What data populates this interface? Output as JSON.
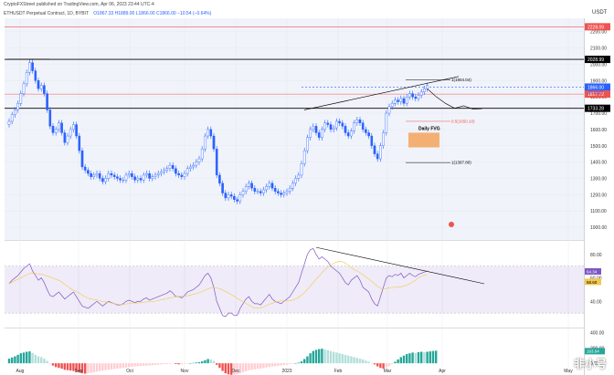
{
  "header": {
    "published": "CryptoFXStreet published on TradingView.com, Apr 06, 2023 23:44 UTC-4",
    "symbol_line": "ETHUSDT Perpetual Contract, 1D, BYBIT",
    "ohlc": "O1867.33 H1889.00 L1866.00 C1866.00 −10.54 (−0.64%)"
  },
  "currency": "USDT",
  "watermark": "非小号",
  "colors": {
    "up": "#2962ff",
    "down": "#2962ff",
    "rsi_band": "#7e57c2",
    "macd_up": "#26a69a",
    "macd_down": "#ef5350",
    "resistance": "#ef5350",
    "support": "#000000"
  },
  "chart_data": [
    {
      "type": "candlestick",
      "panel": "price",
      "x_ticks": [
        "Aug",
        "Sep",
        "Oct",
        "Nov",
        "Dec",
        "2023",
        "Feb",
        "Mar",
        "Apr",
        "May"
      ],
      "y_ticks": [
        "2200.00",
        "2100.00",
        "2000.00",
        "1900.00",
        "1800.00",
        "1700.00",
        "1600.00",
        "1500.00",
        "1400.00",
        "1300.00",
        "1200.00",
        "1100.00",
        "1000.00"
      ],
      "ylim": [
        950,
        2260
      ],
      "close_series": [
        1650,
        1690,
        1720,
        1760,
        1820,
        1880,
        1950,
        2010,
        1960,
        1900,
        1850,
        1870,
        1820,
        1720,
        1620,
        1580,
        1600,
        1640,
        1580,
        1520,
        1560,
        1600,
        1630,
        1560,
        1470,
        1370,
        1350,
        1330,
        1310,
        1320,
        1330,
        1300,
        1280,
        1300,
        1330,
        1320,
        1310,
        1300,
        1290,
        1290,
        1320,
        1330,
        1310,
        1290,
        1300,
        1290,
        1320,
        1330,
        1300,
        1310,
        1320,
        1330,
        1340,
        1350,
        1360,
        1380,
        1360,
        1330,
        1320,
        1310,
        1330,
        1360,
        1370,
        1380,
        1400,
        1420,
        1480,
        1560,
        1600,
        1560,
        1480,
        1320,
        1270,
        1210,
        1180,
        1200,
        1190,
        1170,
        1160,
        1200,
        1220,
        1250,
        1270,
        1240,
        1220,
        1220,
        1210,
        1230,
        1250,
        1270,
        1240,
        1220,
        1210,
        1200,
        1210,
        1220,
        1240,
        1270,
        1300,
        1320,
        1390,
        1470,
        1550,
        1600,
        1620,
        1580,
        1550,
        1600,
        1640,
        1630,
        1600,
        1610,
        1650,
        1640,
        1620,
        1580,
        1560,
        1590,
        1640,
        1660,
        1640,
        1600,
        1580,
        1560,
        1500,
        1450,
        1420,
        1500,
        1580,
        1700,
        1740,
        1760,
        1780,
        1770,
        1790,
        1760,
        1800,
        1820,
        1800,
        1790,
        1810,
        1830,
        1850,
        1870
      ],
      "projection": [
        1850,
        1800,
        1760,
        1730,
        1745,
        1725,
        1728
      ],
      "levels": [
        {
          "value": 2230,
          "label": "2228.09",
          "color": "#ef5350"
        },
        {
          "value": 2030,
          "label": "2028.99",
          "color": "#000000"
        },
        {
          "value": 1860,
          "label": "1866.00",
          "color": "#2962ff"
        },
        {
          "value": 1817,
          "label": "1817.72",
          "color": "#ef5350"
        },
        {
          "value": 1730,
          "label": "1733.28",
          "color": "#000000"
        }
      ],
      "countdown": "23:15:57",
      "annotations": [
        "1(1904.04)",
        "0.5(1650.10)",
        "1(1397.80)",
        "Daily FVG"
      ],
      "fvg_zone": [
        1490,
        1580
      ]
    },
    {
      "type": "line",
      "panel": "rsi",
      "y_ticks": [
        "80.00",
        "60.00",
        "40.00"
      ],
      "ylim": [
        20,
        90
      ],
      "band": [
        30,
        70
      ],
      "last_values": [
        "64.34",
        "58.60"
      ],
      "values": [
        55,
        58,
        60,
        62,
        65,
        68,
        70,
        72,
        66,
        62,
        58,
        60,
        56,
        50,
        45,
        44,
        46,
        48,
        45,
        42,
        44,
        46,
        48,
        44,
        40,
        36,
        35,
        34,
        36,
        38,
        40,
        38,
        36,
        38,
        40,
        39,
        38,
        37,
        37,
        38,
        40,
        41,
        40,
        39,
        40,
        40,
        42,
        43,
        41,
        42,
        43,
        44,
        45,
        46,
        47,
        49,
        47,
        44,
        44,
        43,
        45,
        48,
        49,
        50,
        52,
        54,
        58,
        62,
        64,
        60,
        52,
        40,
        34,
        28,
        27,
        30,
        30,
        28,
        28,
        34,
        38,
        42,
        44,
        40,
        38,
        38,
        37,
        40,
        43,
        46,
        42,
        40,
        39,
        38,
        40,
        42,
        44,
        48,
        52,
        56,
        64,
        72,
        80,
        84,
        85,
        80,
        76,
        78,
        76,
        74,
        70,
        68,
        66,
        64,
        60,
        56,
        54,
        58,
        60,
        62,
        58,
        52,
        50,
        48,
        42,
        38,
        36,
        44,
        52,
        60,
        62,
        61,
        63,
        62,
        64,
        60,
        62,
        64,
        62,
        61,
        63,
        64,
        65,
        66
      ]
    },
    {
      "type": "bar",
      "panel": "macd",
      "y_ticks": [
        "400.00",
        "200.00",
        "0.00"
      ],
      "ylim": [
        -260,
        430
      ],
      "last_value": "163.64",
      "values": [
        60,
        75,
        90,
        110,
        130,
        140,
        150,
        155,
        135,
        110,
        90,
        80,
        60,
        30,
        0,
        -30,
        -50,
        -60,
        -70,
        -85,
        -90,
        -95,
        -100,
        -110,
        -120,
        -130,
        -135,
        -130,
        -125,
        -118,
        -110,
        -100,
        -95,
        -90,
        -85,
        -80,
        -75,
        -70,
        -65,
        -60,
        -55,
        -50,
        -45,
        -40,
        -38,
        -35,
        -32,
        -30,
        -28,
        -25,
        -22,
        -18,
        -15,
        -12,
        -10,
        -8,
        -6,
        -10,
        -14,
        -12,
        -8,
        -4,
        0,
        5,
        10,
        15,
        25,
        40,
        55,
        50,
        30,
        -20,
        -60,
        -100,
        -130,
        -145,
        -150,
        -148,
        -140,
        -130,
        -118,
        -105,
        -92,
        -85,
        -80,
        -75,
        -70,
        -62,
        -55,
        -48,
        -42,
        -38,
        -32,
        -28,
        -22,
        -18,
        -12,
        -6,
        0,
        8,
        25,
        55,
        90,
        130,
        160,
        175,
        185,
        190,
        180,
        170,
        160,
        150,
        140,
        130,
        120,
        110,
        100,
        90,
        80,
        70,
        60,
        50,
        35,
        20,
        5,
        -15,
        -40,
        -60,
        -70,
        -55,
        -35,
        -10,
        20,
        50,
        80,
        100,
        120,
        130,
        140,
        135,
        145,
        150,
        145,
        150,
        155,
        160,
        164
      ]
    }
  ]
}
